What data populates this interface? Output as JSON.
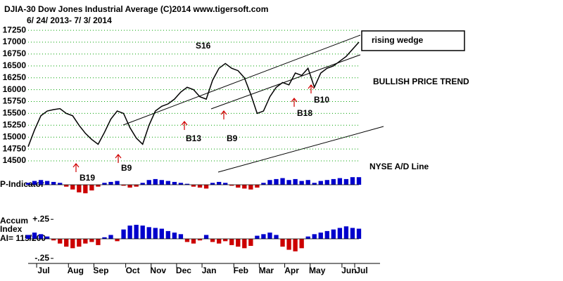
{
  "chart_data": [
    {
      "type": "line",
      "title": "DJIA-30  Dow Jones Industrial Average   (C)2014 www.tigersoft.com",
      "subtitle": "6/ 24/ 2013-  7/ 3/ 2014",
      "categories": [
        null,
        null,
        "Jul",
        null,
        null,
        null,
        null,
        "Aug",
        null,
        null,
        null,
        "Sep",
        null,
        null,
        null,
        null,
        "Oct",
        null,
        null,
        null,
        "Nov",
        null,
        null,
        null,
        "Dec",
        null,
        null,
        null,
        "Jan",
        null,
        null,
        null,
        null,
        "Feb",
        null,
        null,
        null,
        "Mar",
        null,
        null,
        null,
        "Apr",
        null,
        null,
        null,
        "May",
        null,
        null,
        null,
        null,
        "Jun",
        null,
        "Jul"
      ],
      "values": [
        14800,
        15150,
        15450,
        15550,
        15580,
        15600,
        15500,
        15450,
        15250,
        15080,
        14950,
        14850,
        15100,
        15380,
        15550,
        15500,
        15200,
        14980,
        14850,
        15250,
        15550,
        15650,
        15700,
        15800,
        15950,
        16050,
        16000,
        15850,
        15800,
        16200,
        16450,
        16550,
        16450,
        16400,
        16250,
        15900,
        15500,
        15550,
        15850,
        16050,
        16150,
        16100,
        16350,
        16300,
        16450,
        16050,
        16350,
        16450,
        16500,
        16600,
        16700,
        16850,
        17000
      ],
      "color": "#000000",
      "ylim": [
        14500,
        17400
      ],
      "yticks": [
        14500,
        14750,
        15000,
        15250,
        15500,
        15750,
        16000,
        16250,
        16500,
        16750,
        17000,
        17250
      ],
      "grid": true,
      "grid_color": "#00a000",
      "annotations": [
        "S16",
        "B13",
        "B9",
        "B19",
        "B9",
        "B18",
        "B10",
        "rising wedge",
        "BULLISH PRICE TREND",
        "NYSE A/D Line"
      ]
    },
    {
      "type": "bar",
      "title": "P-Indicator",
      "values": [
        10,
        20,
        25,
        20,
        15,
        10,
        -10,
        -25,
        -40,
        -45,
        -30,
        -10,
        10,
        15,
        20,
        -5,
        -15,
        -10,
        10,
        25,
        30,
        25,
        20,
        15,
        10,
        5,
        -10,
        -15,
        -20,
        10,
        15,
        10,
        -5,
        -15,
        -20,
        -25,
        -15,
        10,
        25,
        30,
        35,
        25,
        30,
        20,
        25,
        10,
        20,
        25,
        30,
        35,
        30,
        40,
        40
      ],
      "ylim": [
        -100,
        100
      ],
      "positive_color": "#0000cc",
      "negative_color": "#cc0000"
    },
    {
      "type": "bar",
      "title_lines": [
        "Accum",
        "Index"
      ],
      "note": "AI= 115/200",
      "values": [
        0.05,
        0.08,
        0.06,
        0.03,
        -0.02,
        -0.06,
        -0.1,
        -0.12,
        -0.1,
        -0.06,
        -0.04,
        -0.08,
        0.02,
        0.05,
        -0.03,
        0.12,
        0.17,
        0.18,
        0.17,
        0.15,
        0.14,
        0.13,
        0.1,
        0.08,
        0.06,
        -0.04,
        -0.06,
        -0.02,
        0.05,
        -0.04,
        -0.06,
        -0.03,
        -0.08,
        -0.1,
        -0.12,
        -0.09,
        0.04,
        0.06,
        0.08,
        0.05,
        -0.1,
        -0.14,
        -0.16,
        -0.12,
        0.03,
        0.06,
        0.08,
        0.1,
        0.12,
        0.14,
        0.16,
        0.14,
        0.13
      ],
      "ylim": [
        -0.36,
        0.36
      ],
      "yticks": [
        {
          "value": 0.25,
          "label": "+.25"
        },
        {
          "value": -0.25,
          "label": "-.25"
        }
      ],
      "positive_color": "#0000cc",
      "negative_color": "#cc0000"
    }
  ]
}
